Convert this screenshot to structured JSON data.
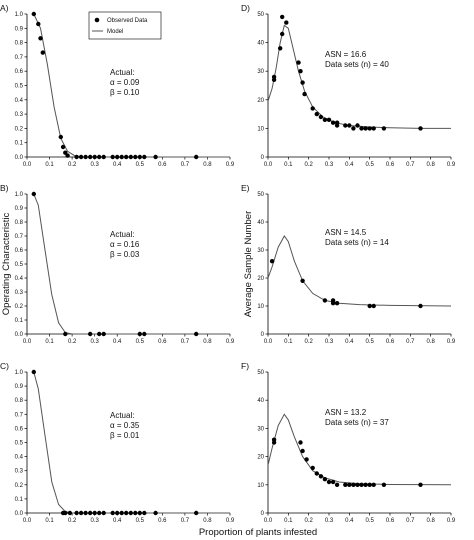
{
  "figure": {
    "xlabel": "Proportion of plants infested",
    "ylabel_left": "Operating Characteristic",
    "ylabel_right": "Average Sample Number",
    "legend": {
      "observed": "Observed Data",
      "model": "Model"
    }
  },
  "colors": {
    "axis": "#000000",
    "curve": "#555555",
    "point": "#000000"
  },
  "chart_data": [
    {
      "panel": "A)",
      "type": "scatter",
      "annotation": [
        "Actual:",
        "α = 0.09",
        "β = 0.10"
      ],
      "xlim": [
        0,
        0.9
      ],
      "ylim": [
        0,
        1.0
      ],
      "xticks": [
        "0.0",
        "0.1",
        "0.2",
        "0.3",
        "0.4",
        "0.5",
        "0.6",
        "0.7",
        "0.8",
        "0.9"
      ],
      "yticks": [
        "0.0",
        "0.1",
        "0.2",
        "0.3",
        "0.4",
        "0.5",
        "0.6",
        "0.7",
        "0.8",
        "0.9",
        "1.0"
      ],
      "points": [
        [
          0.03,
          1.0
        ],
        [
          0.05,
          0.93
        ],
        [
          0.06,
          0.83
        ],
        [
          0.07,
          0.73
        ],
        [
          0.15,
          0.14
        ],
        [
          0.16,
          0.07
        ],
        [
          0.17,
          0.03
        ],
        [
          0.18,
          0.01
        ],
        [
          0.22,
          0.0
        ],
        [
          0.24,
          0.0
        ],
        [
          0.26,
          0.0
        ],
        [
          0.28,
          0.0
        ],
        [
          0.3,
          0.0
        ],
        [
          0.32,
          0.0
        ],
        [
          0.34,
          0.0
        ],
        [
          0.38,
          0.0
        ],
        [
          0.4,
          0.0
        ],
        [
          0.42,
          0.0
        ],
        [
          0.44,
          0.0
        ],
        [
          0.46,
          0.0
        ],
        [
          0.48,
          0.0
        ],
        [
          0.5,
          0.0
        ],
        [
          0.52,
          0.0
        ],
        [
          0.57,
          0.0
        ],
        [
          0.75,
          0.0
        ]
      ],
      "model": [
        [
          0.03,
          1.0
        ],
        [
          0.06,
          0.9
        ],
        [
          0.09,
          0.65
        ],
        [
          0.12,
          0.35
        ],
        [
          0.15,
          0.13
        ],
        [
          0.18,
          0.04
        ],
        [
          0.21,
          0.01
        ],
        [
          0.25,
          0.0
        ],
        [
          0.9,
          0.0
        ]
      ]
    },
    {
      "panel": "B)",
      "type": "scatter",
      "annotation": [
        "Actual:",
        "α = 0.16",
        "β = 0.03"
      ],
      "xlim": [
        0,
        0.9
      ],
      "ylim": [
        0,
        1.0
      ],
      "xticks": [
        "0.0",
        "0.1",
        "0.2",
        "0.3",
        "0.4",
        "0.5",
        "0.6",
        "0.7",
        "0.8",
        "0.9"
      ],
      "yticks": [
        "0.0",
        "0.1",
        "0.2",
        "0.3",
        "0.4",
        "0.5",
        "0.6",
        "0.7",
        "0.8",
        "0.9",
        "1.0"
      ],
      "points": [
        [
          0.03,
          1.0
        ],
        [
          0.17,
          0.0
        ],
        [
          0.28,
          0.0
        ],
        [
          0.32,
          0.0
        ],
        [
          0.34,
          0.0
        ],
        [
          0.5,
          0.0
        ],
        [
          0.52,
          0.0
        ],
        [
          0.75,
          0.0
        ]
      ],
      "model": [
        [
          0.03,
          1.0
        ],
        [
          0.05,
          0.92
        ],
        [
          0.08,
          0.6
        ],
        [
          0.11,
          0.28
        ],
        [
          0.14,
          0.08
        ],
        [
          0.17,
          0.01
        ],
        [
          0.2,
          0.0
        ],
        [
          0.9,
          0.0
        ]
      ]
    },
    {
      "panel": "C)",
      "type": "scatter",
      "annotation": [
        "Actual:",
        "α = 0.35",
        "β = 0.01"
      ],
      "xlim": [
        0,
        0.9
      ],
      "ylim": [
        0,
        1.0
      ],
      "xticks": [
        "0.0",
        "0.1",
        "0.2",
        "0.3",
        "0.4",
        "0.5",
        "0.6",
        "0.7",
        "0.8",
        "0.9"
      ],
      "yticks": [
        "0.0",
        "0.1",
        "0.2",
        "0.3",
        "0.4",
        "0.5",
        "0.6",
        "0.7",
        "0.8",
        "0.9",
        "1.0"
      ],
      "points": [
        [
          0.03,
          1.0
        ],
        [
          0.16,
          0.0
        ],
        [
          0.17,
          0.0
        ],
        [
          0.19,
          0.0
        ],
        [
          0.22,
          0.0
        ],
        [
          0.24,
          0.0
        ],
        [
          0.26,
          0.0
        ],
        [
          0.28,
          0.0
        ],
        [
          0.3,
          0.0
        ],
        [
          0.32,
          0.0
        ],
        [
          0.34,
          0.0
        ],
        [
          0.38,
          0.0
        ],
        [
          0.4,
          0.0
        ],
        [
          0.42,
          0.0
        ],
        [
          0.44,
          0.0
        ],
        [
          0.46,
          0.0
        ],
        [
          0.48,
          0.0
        ],
        [
          0.5,
          0.0
        ],
        [
          0.52,
          0.0
        ],
        [
          0.57,
          0.0
        ],
        [
          0.75,
          0.0
        ]
      ],
      "model": [
        [
          0.03,
          1.0
        ],
        [
          0.05,
          0.88
        ],
        [
          0.08,
          0.55
        ],
        [
          0.11,
          0.22
        ],
        [
          0.14,
          0.06
        ],
        [
          0.17,
          0.01
        ],
        [
          0.2,
          0.0
        ],
        [
          0.9,
          0.0
        ]
      ]
    },
    {
      "panel": "D)",
      "type": "scatter",
      "annotation": [
        "ASN = 16.6",
        "Data sets (n) = 40"
      ],
      "xlim": [
        0,
        0.9
      ],
      "ylim": [
        0,
        50
      ],
      "xticks": [
        "0.0",
        "0.1",
        "0.2",
        "0.3",
        "0.4",
        "0.5",
        "0.6",
        "0.7",
        "0.8",
        "0.9"
      ],
      "yticks": [
        "0",
        "10",
        "20",
        "30",
        "40",
        "50"
      ],
      "points": [
        [
          0.03,
          27
        ],
        [
          0.03,
          28
        ],
        [
          0.06,
          38
        ],
        [
          0.07,
          43
        ],
        [
          0.07,
          49
        ],
        [
          0.09,
          47
        ],
        [
          0.15,
          33
        ],
        [
          0.16,
          30
        ],
        [
          0.17,
          26
        ],
        [
          0.18,
          22
        ],
        [
          0.22,
          17
        ],
        [
          0.24,
          15
        ],
        [
          0.26,
          14
        ],
        [
          0.28,
          13
        ],
        [
          0.3,
          13
        ],
        [
          0.32,
          12
        ],
        [
          0.34,
          11
        ],
        [
          0.34,
          12
        ],
        [
          0.38,
          11
        ],
        [
          0.4,
          11
        ],
        [
          0.42,
          10
        ],
        [
          0.44,
          11
        ],
        [
          0.46,
          10
        ],
        [
          0.48,
          10
        ],
        [
          0.5,
          10
        ],
        [
          0.52,
          10
        ],
        [
          0.57,
          10
        ],
        [
          0.75,
          10
        ]
      ],
      "model": [
        [
          0.0,
          19.5
        ],
        [
          0.02,
          24
        ],
        [
          0.04,
          31
        ],
        [
          0.06,
          40
        ],
        [
          0.08,
          46
        ],
        [
          0.1,
          45
        ],
        [
          0.12,
          39
        ],
        [
          0.15,
          30
        ],
        [
          0.18,
          23
        ],
        [
          0.22,
          17.5
        ],
        [
          0.27,
          14
        ],
        [
          0.33,
          12
        ],
        [
          0.4,
          11
        ],
        [
          0.5,
          10.5
        ],
        [
          0.6,
          10.2
        ],
        [
          0.75,
          10
        ],
        [
          0.9,
          10
        ]
      ]
    },
    {
      "panel": "E)",
      "type": "scatter",
      "annotation": [
        "ASN = 14.5",
        "Data sets (n) = 14"
      ],
      "xlim": [
        0,
        0.9
      ],
      "ylim": [
        0,
        50
      ],
      "xticks": [
        "0.0",
        "0.1",
        "0.2",
        "0.3",
        "0.4",
        "0.5",
        "0.6",
        "0.7",
        "0.8",
        "0.9"
      ],
      "yticks": [
        "0",
        "10",
        "20",
        "30",
        "40",
        "50"
      ],
      "points": [
        [
          0.02,
          26
        ],
        [
          0.17,
          19
        ],
        [
          0.28,
          12
        ],
        [
          0.32,
          11
        ],
        [
          0.32,
          12
        ],
        [
          0.34,
          11
        ],
        [
          0.5,
          10
        ],
        [
          0.52,
          10
        ],
        [
          0.75,
          10
        ]
      ],
      "model": [
        [
          0.0,
          20
        ],
        [
          0.02,
          24
        ],
        [
          0.05,
          31
        ],
        [
          0.08,
          35
        ],
        [
          0.1,
          33
        ],
        [
          0.13,
          26
        ],
        [
          0.17,
          19
        ],
        [
          0.22,
          14.5
        ],
        [
          0.28,
          12
        ],
        [
          0.35,
          11
        ],
        [
          0.45,
          10.5
        ],
        [
          0.6,
          10.2
        ],
        [
          0.9,
          10
        ]
      ]
    },
    {
      "panel": "F)",
      "type": "scatter",
      "annotation": [
        "ASN = 13.2",
        "Data sets (n) = 37"
      ],
      "xlim": [
        0,
        0.9
      ],
      "ylim": [
        0,
        50
      ],
      "xticks": [
        "0.0",
        "0.1",
        "0.2",
        "0.3",
        "0.4",
        "0.5",
        "0.6",
        "0.7",
        "0.8",
        "0.9"
      ],
      "yticks": [
        "0",
        "10",
        "20",
        "30",
        "40",
        "50"
      ],
      "points": [
        [
          0.03,
          25
        ],
        [
          0.03,
          26
        ],
        [
          0.16,
          25
        ],
        [
          0.17,
          22
        ],
        [
          0.19,
          19
        ],
        [
          0.22,
          16
        ],
        [
          0.24,
          14
        ],
        [
          0.26,
          13
        ],
        [
          0.28,
          12
        ],
        [
          0.3,
          11
        ],
        [
          0.32,
          11
        ],
        [
          0.34,
          10
        ],
        [
          0.38,
          10
        ],
        [
          0.4,
          10
        ],
        [
          0.42,
          10
        ],
        [
          0.44,
          10
        ],
        [
          0.46,
          10
        ],
        [
          0.48,
          10
        ],
        [
          0.5,
          10
        ],
        [
          0.52,
          10
        ],
        [
          0.57,
          10
        ],
        [
          0.75,
          10
        ]
      ],
      "model": [
        [
          0.0,
          17
        ],
        [
          0.02,
          23
        ],
        [
          0.05,
          31
        ],
        [
          0.08,
          35
        ],
        [
          0.1,
          33
        ],
        [
          0.13,
          27
        ],
        [
          0.17,
          20
        ],
        [
          0.22,
          15
        ],
        [
          0.28,
          12.5
        ],
        [
          0.35,
          11
        ],
        [
          0.45,
          10.4
        ],
        [
          0.6,
          10.1
        ],
        [
          0.9,
          10
        ]
      ]
    }
  ]
}
